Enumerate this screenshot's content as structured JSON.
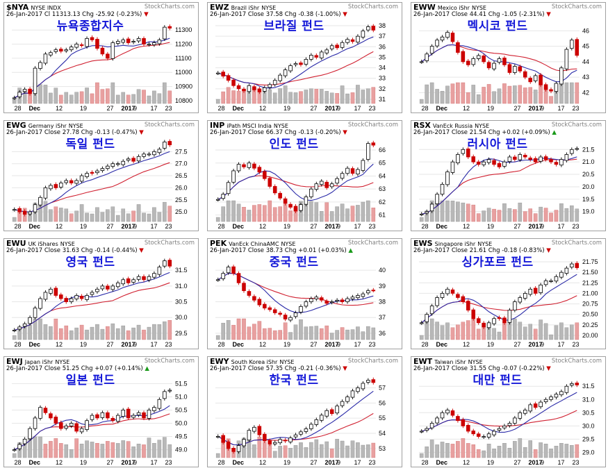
{
  "chart_data": [
    {
      "type": "candlestick",
      "ticker": "$NYA",
      "name": "NYSE INDX",
      "date": "26-Jan-2017",
      "close_label": "Cl",
      "close": "11313.13",
      "chg_label": "Chg",
      "chg": "-25.92 (-0.23%)",
      "direction": "down",
      "korean_title": "뉴욕종합지수",
      "yticks": [
        "11300",
        "11200",
        "11100",
        "11000",
        "10900",
        "10800"
      ],
      "ylim": [
        10780,
        11360
      ],
      "xticks": [
        "28",
        "Dec",
        "12",
        "19",
        "27",
        "2017",
        "9",
        "17",
        "23"
      ],
      "close_series": [
        10820,
        10860,
        10880,
        10850,
        11030,
        11070,
        11130,
        11140,
        11160,
        11150,
        11160,
        11180,
        11200,
        11190,
        11240,
        11230,
        11170,
        11130,
        11100,
        11210,
        11220,
        11230,
        11210,
        11220,
        11240,
        11200,
        11200,
        11210,
        11230,
        11320,
        11313
      ]
    },
    {
      "type": "candlestick",
      "ticker": "EWZ",
      "name": "Brazil iShr",
      "exchange": "NYSE",
      "date": "26-Jan-2017",
      "close_label": "Close",
      "close": "37.58",
      "chg_label": "Chg",
      "chg": "-0.38 (-1.00%)",
      "direction": "down",
      "korean_title": "브라질 펀드",
      "yticks": [
        "38",
        "37",
        "36",
        "35",
        "34",
        "33",
        "32",
        "31"
      ],
      "ylim": [
        30.6,
        38.4
      ],
      "xticks": [
        "28",
        "Dec",
        "12",
        "19",
        "27",
        "2017",
        "9",
        "17",
        "23"
      ],
      "close_series": [
        33.5,
        33.2,
        32.8,
        32.3,
        32.0,
        31.8,
        32.3,
        31.9,
        31.7,
        32.1,
        32.4,
        32.8,
        33.3,
        33.8,
        34.2,
        34.4,
        34.3,
        34.8,
        35.2,
        35.0,
        35.5,
        35.7,
        36.1,
        35.9,
        36.4,
        36.7,
        36.5,
        37.0,
        37.5,
        37.9,
        37.58
      ]
    },
    {
      "type": "candlestick",
      "ticker": "EWW",
      "name": "Mexico iShr",
      "exchange": "NYSE",
      "date": "26-Jan-2017",
      "close_label": "Close",
      "close": "44.41",
      "chg_label": "Chg",
      "chg": "-1.05 (-2.31%)",
      "direction": "down",
      "korean_title": "멕시코 펀드",
      "yticks": [
        "46",
        "45",
        "44",
        "43",
        "42"
      ],
      "ylim": [
        41.3,
        46.6
      ],
      "xticks": [
        "28",
        "Dec",
        "12",
        "19",
        "27",
        "2017",
        "9",
        "17",
        "23"
      ],
      "close_series": [
        44.0,
        44.5,
        45.0,
        45.4,
        45.6,
        45.9,
        45.3,
        44.6,
        44.0,
        43.8,
        44.2,
        44.4,
        44.0,
        43.6,
        43.9,
        44.2,
        43.8,
        43.3,
        43.7,
        43.4,
        43.0,
        42.7,
        43.1,
        42.5,
        42.2,
        42.1,
        42.6,
        43.6,
        44.8,
        45.4,
        44.41
      ]
    },
    {
      "type": "candlestick",
      "ticker": "EWG",
      "name": "Germany iShr",
      "exchange": "NYSE",
      "date": "26-Jan-2017",
      "close_label": "Close",
      "close": "27.78",
      "chg_label": "Chg",
      "chg": "-0.13 (-0.47%)",
      "direction": "down",
      "korean_title": "독일 펀드",
      "yticks": [
        "27.5",
        "27.0",
        "26.5",
        "26.0",
        "25.5",
        "25.0"
      ],
      "ylim": [
        24.6,
        28.0
      ],
      "xticks": [
        "28",
        "Dec",
        "12",
        "19",
        "27",
        "2017",
        "9",
        "17",
        "23"
      ],
      "close_series": [
        25.1,
        25.0,
        24.9,
        25.0,
        25.3,
        25.6,
        26.0,
        26.1,
        26.0,
        26.2,
        26.3,
        26.2,
        26.3,
        26.5,
        26.6,
        26.6,
        26.7,
        26.8,
        26.9,
        27.0,
        27.0,
        27.1,
        27.2,
        27.1,
        27.3,
        27.4,
        27.4,
        27.5,
        27.6,
        27.9,
        27.78
      ]
    },
    {
      "type": "candlestick",
      "ticker": "INP",
      "name": "iPath MSCI India",
      "exchange": "NYSE",
      "date": "26-Jan-2017",
      "close_label": "Close",
      "close": "66.37",
      "chg_label": "Chg",
      "chg": "-0.13 (-0.20%)",
      "direction": "down",
      "korean_title": "인도 펀드",
      "yticks": [
        "66",
        "65",
        "64",
        "63",
        "62",
        "61"
      ],
      "ylim": [
        60.5,
        66.8
      ],
      "xticks": [
        "28",
        "Dec",
        "12",
        "19",
        "27",
        "2017",
        "9",
        "17",
        "23"
      ],
      "close_series": [
        62.2,
        62.6,
        63.5,
        64.4,
        64.9,
        64.7,
        65.0,
        64.6,
        64.3,
        63.8,
        63.2,
        62.7,
        62.3,
        61.9,
        61.6,
        61.3,
        61.8,
        62.4,
        63.0,
        63.4,
        63.6,
        63.1,
        63.4,
        63.8,
        64.2,
        64.6,
        64.2,
        64.5,
        65.2,
        66.5,
        66.37
      ]
    },
    {
      "type": "candlestick",
      "ticker": "RSX",
      "name": "VanEck Russia",
      "exchange": "NYSE",
      "date": "26-Jan-2017",
      "close_label": "Close",
      "close": "21.54",
      "chg_label": "Chg",
      "chg": "+0.02 (+0.09%)",
      "direction": "up",
      "korean_title": "러시아 펀드",
      "yticks": [
        "21.5",
        "21.0",
        "20.5",
        "20.0",
        "19.5",
        "19.0"
      ],
      "ylim": [
        18.6,
        21.9
      ],
      "xticks": [
        "28",
        "Dec",
        "12",
        "19",
        "27",
        "2017",
        "9",
        "17",
        "23"
      ],
      "close_series": [
        18.9,
        19.0,
        19.3,
        19.7,
        20.1,
        20.6,
        21.0,
        21.3,
        21.5,
        21.2,
        21.0,
        20.9,
        21.0,
        21.1,
        20.9,
        20.8,
        21.0,
        21.2,
        21.1,
        21.3,
        21.2,
        21.1,
        21.0,
        21.2,
        21.1,
        21.0,
        20.9,
        21.1,
        21.3,
        21.5,
        21.54
      ]
    },
    {
      "type": "candlestick",
      "ticker": "EWU",
      "name": "UK iShares",
      "exchange": "NYSE",
      "date": "26-Jan-2017",
      "close_label": "Close",
      "close": "31.63",
      "chg_label": "Chg",
      "chg": "-0.14 (-0.44%)",
      "direction": "down",
      "korean_title": "영국 펀드",
      "yticks": [
        "31.5",
        "31.0",
        "30.5",
        "30.0",
        "29.5"
      ],
      "ylim": [
        29.3,
        31.9
      ],
      "xticks": [
        "28",
        "Dec",
        "12",
        "19",
        "27",
        "2017",
        "9",
        "17",
        "23"
      ],
      "close_series": [
        29.6,
        29.7,
        29.8,
        30.0,
        30.3,
        30.6,
        30.8,
        30.9,
        30.7,
        30.6,
        30.5,
        30.6,
        30.7,
        30.6,
        30.7,
        30.8,
        30.9,
        31.0,
        30.9,
        31.0,
        31.1,
        31.2,
        31.1,
        31.2,
        31.3,
        31.2,
        31.3,
        31.4,
        31.6,
        31.8,
        31.63
      ]
    },
    {
      "type": "candlestick",
      "ticker": "PEK",
      "name": "VanEck ChinaAMC",
      "exchange": "NYSE",
      "date": "26-Jan-2017",
      "close_label": "Close",
      "close": "38.73",
      "chg_label": "Chg",
      "chg": "+0.01 (+0.03%)",
      "direction": "up",
      "korean_title": "중국 펀드",
      "yticks": [
        "40",
        "39",
        "38",
        "37",
        "36"
      ],
      "ylim": [
        35.6,
        40.8
      ],
      "xticks": [
        "28",
        "Dec",
        "12",
        "19",
        "27",
        "2017",
        "9",
        "17",
        "23"
      ],
      "close_series": [
        39.4,
        39.8,
        40.2,
        39.8,
        39.2,
        38.7,
        38.4,
        38.1,
        37.8,
        37.6,
        37.5,
        37.3,
        37.2,
        36.9,
        37.0,
        37.3,
        37.7,
        38.0,
        38.2,
        38.3,
        38.1,
        37.9,
        38.0,
        38.1,
        38.0,
        38.2,
        38.3,
        38.4,
        38.5,
        38.7,
        38.73
      ]
    },
    {
      "type": "candlestick",
      "ticker": "EWS",
      "name": "Singapore iShr",
      "exchange": "NYSE",
      "date": "26-Jan-2017",
      "close_label": "Close",
      "close": "21.61",
      "chg_label": "Chg",
      "chg": "-0.18 (-0.83%)",
      "direction": "down",
      "korean_title": "싱가포르 펀드",
      "yticks": [
        "21.75",
        "21.50",
        "21.25",
        "21.00",
        "20.75",
        "20.50",
        "20.25",
        "20.00"
      ],
      "ylim": [
        19.9,
        21.85
      ],
      "xticks": [
        "28",
        "Dec",
        "12",
        "19",
        "27",
        "2017",
        "9",
        "17",
        "23"
      ],
      "close_series": [
        20.3,
        20.5,
        20.7,
        20.9,
        21.0,
        21.1,
        21.0,
        20.9,
        20.8,
        20.6,
        20.4,
        20.3,
        20.2,
        20.3,
        20.4,
        20.4,
        20.3,
        20.6,
        20.8,
        20.9,
        21.0,
        21.1,
        21.0,
        21.2,
        21.3,
        21.3,
        21.4,
        21.5,
        21.6,
        21.7,
        21.61
      ]
    },
    {
      "type": "candlestick",
      "ticker": "EWJ",
      "name": "Japan iShr",
      "exchange": "NYSE",
      "date": "26-Jan-2017",
      "close_label": "Close",
      "close": "51.25",
      "chg_label": "Chg",
      "chg": "+0.07 (+0.14%)",
      "direction": "up",
      "korean_title": "일본 펀드",
      "yticks": [
        "51.5",
        "51.0",
        "50.5",
        "50.0",
        "49.5",
        "49.0"
      ],
      "ylim": [
        48.7,
        51.8
      ],
      "xticks": [
        "28",
        "Dec",
        "12",
        "19",
        "27",
        "2017",
        "9",
        "17",
        "23"
      ],
      "close_series": [
        49.0,
        49.2,
        49.4,
        49.8,
        50.2,
        50.6,
        50.4,
        50.2,
        50.0,
        49.8,
        49.9,
        50.0,
        49.7,
        49.8,
        50.1,
        50.3,
        50.2,
        50.4,
        50.2,
        50.1,
        50.3,
        50.5,
        50.2,
        50.3,
        50.4,
        50.2,
        50.5,
        50.6,
        50.9,
        51.2,
        51.25
      ]
    },
    {
      "type": "candlestick",
      "ticker": "EWY",
      "name": "South Korea iShr",
      "exchange": "NYSE",
      "date": "26-Jan-2017",
      "close_label": "Close",
      "close": "57.35",
      "chg_label": "Chg",
      "chg": "-0.21 (-0.36%)",
      "direction": "down",
      "korean_title": "한국 펀드",
      "yticks": [
        "57",
        "56",
        "55",
        "54",
        "53"
      ],
      "ylim": [
        52.4,
        57.8
      ],
      "xticks": [
        "28",
        "Dec",
        "12",
        "19",
        "27",
        "2017",
        "9",
        "17",
        "23"
      ],
      "close_series": [
        53.8,
        53.4,
        53.0,
        52.8,
        53.2,
        53.6,
        54.2,
        54.4,
        53.9,
        53.5,
        53.3,
        53.4,
        53.6,
        53.5,
        53.7,
        53.9,
        54.1,
        54.3,
        54.6,
        54.9,
        55.2,
        55.5,
        55.3,
        55.8,
        56.1,
        56.4,
        56.8,
        57.0,
        57.3,
        57.5,
        57.35
      ]
    },
    {
      "type": "candlestick",
      "ticker": "EWT",
      "name": "Taiwan iShr",
      "exchange": "NYSE",
      "date": "26-Jan-2017",
      "close_label": "Close",
      "close": "31.55",
      "chg_label": "Chg",
      "chg": "-0.07 (-0.22%)",
      "direction": "down",
      "korean_title": "대만 펀드",
      "yticks": [
        "31.5",
        "31.0",
        "30.5",
        "30.0",
        "29.5",
        "29.0"
      ],
      "ylim": [
        28.8,
        31.9
      ],
      "xticks": [
        "28",
        "Dec",
        "12",
        "19",
        "27",
        "2017",
        "9",
        "17",
        "23"
      ],
      "close_series": [
        29.8,
        29.9,
        30.1,
        30.3,
        30.5,
        30.6,
        30.4,
        30.2,
        30.0,
        29.8,
        29.7,
        29.6,
        29.6,
        29.7,
        29.8,
        29.9,
        30.0,
        30.1,
        30.3,
        30.5,
        30.6,
        30.8,
        30.7,
        30.9,
        31.0,
        31.1,
        31.2,
        31.3,
        31.5,
        31.6,
        31.55
      ]
    }
  ],
  "watermark": "StockCharts.com",
  "colors": {
    "up": "#000000",
    "down": "#cc0000",
    "ma_short": "#2a2aa8",
    "ma_long": "#d02030",
    "volume": "#b8b8b8",
    "volume_down": "#e8a0a0",
    "title": "#1418d8",
    "border": "#a0a0a0"
  }
}
